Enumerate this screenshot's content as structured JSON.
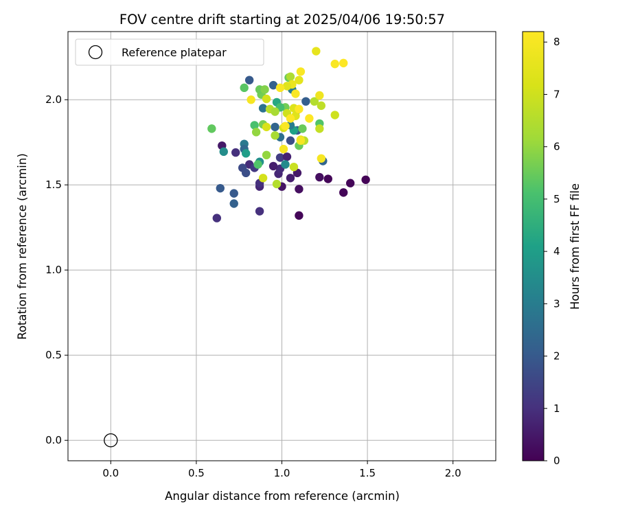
{
  "chart_data": {
    "type": "scatter",
    "title": "FOV centre drift starting at 2025/04/06 19:50:57",
    "xlabel": "Angular distance from reference (arcmin)",
    "ylabel": "Rotation from reference (arcmin)",
    "xlim": [
      -0.25,
      2.25
    ],
    "ylim": [
      -0.12,
      2.4
    ],
    "xticks": [
      "0.0",
      "0.5",
      "1.0",
      "1.5",
      "2.0"
    ],
    "xtick_values": [
      0,
      0.5,
      1.0,
      1.5,
      2.0
    ],
    "yticks": [
      "0.0",
      "0.5",
      "1.0",
      "1.5",
      "2.0"
    ],
    "ytick_values": [
      0,
      0.5,
      1.0,
      1.5,
      2.0
    ],
    "grid": true,
    "legend": {
      "placement": "top-left",
      "entries": [
        "Reference platepar"
      ]
    },
    "reference_point": {
      "x": 0.0,
      "y": 0.0
    },
    "colorbar": {
      "label": "Hours from first FF file",
      "colormap": "viridis",
      "range": [
        0,
        8.2
      ],
      "ticks": [
        "0",
        "1",
        "2",
        "3",
        "4",
        "5",
        "6",
        "7",
        "8"
      ],
      "tick_values": [
        0,
        1,
        2,
        3,
        4,
        5,
        6,
        7,
        8
      ]
    },
    "points": [
      {
        "x": 1.1,
        "y": 1.32,
        "h": 0.1
      },
      {
        "x": 1.36,
        "y": 1.455,
        "h": 0.1
      },
      {
        "x": 1.4,
        "y": 1.51,
        "h": 0.1
      },
      {
        "x": 1.49,
        "y": 1.53,
        "h": 0.05
      },
      {
        "x": 1.27,
        "y": 1.535,
        "h": 0.1
      },
      {
        "x": 1.22,
        "y": 1.545,
        "h": 0.3
      },
      {
        "x": 1.1,
        "y": 1.475,
        "h": 0.3
      },
      {
        "x": 1.0,
        "y": 1.49,
        "h": 0.4
      },
      {
        "x": 1.05,
        "y": 1.54,
        "h": 0.6
      },
      {
        "x": 1.09,
        "y": 1.57,
        "h": 0.5
      },
      {
        "x": 0.98,
        "y": 1.565,
        "h": 0.8
      },
      {
        "x": 0.99,
        "y": 1.595,
        "h": 0.9
      },
      {
        "x": 0.95,
        "y": 1.61,
        "h": 0.6
      },
      {
        "x": 0.87,
        "y": 1.49,
        "h": 0.8
      },
      {
        "x": 0.87,
        "y": 1.51,
        "h": 1.0
      },
      {
        "x": 0.87,
        "y": 1.345,
        "h": 1.0
      },
      {
        "x": 0.62,
        "y": 1.305,
        "h": 1.0
      },
      {
        "x": 0.65,
        "y": 1.73,
        "h": 0.5
      },
      {
        "x": 0.73,
        "y": 1.69,
        "h": 1.0
      },
      {
        "x": 0.81,
        "y": 1.62,
        "h": 0.9
      },
      {
        "x": 0.84,
        "y": 1.6,
        "h": 1.2
      },
      {
        "x": 0.77,
        "y": 1.6,
        "h": 1.6
      },
      {
        "x": 0.79,
        "y": 1.57,
        "h": 1.7
      },
      {
        "x": 0.64,
        "y": 1.48,
        "h": 2.0
      },
      {
        "x": 0.72,
        "y": 1.45,
        "h": 2.0
      },
      {
        "x": 0.72,
        "y": 1.39,
        "h": 2.2
      },
      {
        "x": 1.24,
        "y": 1.64,
        "h": 2.3
      },
      {
        "x": 0.99,
        "y": 1.66,
        "h": 1.3
      },
      {
        "x": 1.03,
        "y": 1.665,
        "h": 0.7
      },
      {
        "x": 1.05,
        "y": 1.76,
        "h": 1.7
      },
      {
        "x": 1.09,
        "y": 1.82,
        "h": 2.0
      },
      {
        "x": 0.99,
        "y": 1.78,
        "h": 2.6
      },
      {
        "x": 0.96,
        "y": 1.84,
        "h": 2.3
      },
      {
        "x": 1.02,
        "y": 1.62,
        "h": 3.4
      },
      {
        "x": 0.78,
        "y": 1.74,
        "h": 2.9
      },
      {
        "x": 0.66,
        "y": 1.695,
        "h": 3.5
      },
      {
        "x": 0.78,
        "y": 1.71,
        "h": 2.4
      },
      {
        "x": 0.89,
        "y": 1.95,
        "h": 2.7
      },
      {
        "x": 0.81,
        "y": 2.115,
        "h": 2.0
      },
      {
        "x": 0.95,
        "y": 2.085,
        "h": 2.2
      },
      {
        "x": 1.14,
        "y": 1.99,
        "h": 2.1
      },
      {
        "x": 1.09,
        "y": 1.94,
        "h": 1.9
      },
      {
        "x": 0.87,
        "y": 1.635,
        "h": 3.6
      },
      {
        "x": 0.79,
        "y": 1.685,
        "h": 4.0
      },
      {
        "x": 1.07,
        "y": 1.82,
        "h": 4.1
      },
      {
        "x": 1.05,
        "y": 1.85,
        "h": 3.0
      },
      {
        "x": 0.97,
        "y": 1.985,
        "h": 4.3
      },
      {
        "x": 1.06,
        "y": 2.06,
        "h": 3.0
      },
      {
        "x": 0.59,
        "y": 1.83,
        "h": 5.4
      },
      {
        "x": 0.78,
        "y": 2.07,
        "h": 5.3
      },
      {
        "x": 0.84,
        "y": 1.85,
        "h": 5.1
      },
      {
        "x": 0.86,
        "y": 1.62,
        "h": 5.2
      },
      {
        "x": 0.88,
        "y": 2.03,
        "h": 5.6
      },
      {
        "x": 0.87,
        "y": 2.06,
        "h": 5.5
      },
      {
        "x": 0.9,
        "y": 2.06,
        "h": 5.8
      },
      {
        "x": 0.89,
        "y": 1.855,
        "h": 5.7
      },
      {
        "x": 1.1,
        "y": 1.73,
        "h": 5.5
      },
      {
        "x": 1.12,
        "y": 1.83,
        "h": 5.5
      },
      {
        "x": 1.22,
        "y": 1.86,
        "h": 5.2
      },
      {
        "x": 1.02,
        "y": 1.955,
        "h": 5.6
      },
      {
        "x": 1.04,
        "y": 2.13,
        "h": 5.5
      },
      {
        "x": 0.99,
        "y": 1.955,
        "h": 5.0
      },
      {
        "x": 0.91,
        "y": 1.675,
        "h": 6.0
      },
      {
        "x": 0.85,
        "y": 1.81,
        "h": 6.0
      },
      {
        "x": 0.96,
        "y": 1.79,
        "h": 6.3
      },
      {
        "x": 0.97,
        "y": 1.505,
        "h": 6.5
      },
      {
        "x": 1.05,
        "y": 2.135,
        "h": 6.4
      },
      {
        "x": 0.93,
        "y": 1.945,
        "h": 6.6
      },
      {
        "x": 0.96,
        "y": 1.93,
        "h": 6.3
      },
      {
        "x": 1.13,
        "y": 1.76,
        "h": 6.6
      },
      {
        "x": 1.19,
        "y": 1.99,
        "h": 6.5
      },
      {
        "x": 1.22,
        "y": 1.83,
        "h": 6.8
      },
      {
        "x": 1.23,
        "y": 1.965,
        "h": 6.7
      },
      {
        "x": 1.07,
        "y": 1.605,
        "h": 6.9
      },
      {
        "x": 0.89,
        "y": 1.54,
        "h": 7.1
      },
      {
        "x": 0.91,
        "y": 1.84,
        "h": 7.2
      },
      {
        "x": 0.91,
        "y": 2.005,
        "h": 7.1
      },
      {
        "x": 1.01,
        "y": 1.835,
        "h": 7.2
      },
      {
        "x": 1.03,
        "y": 1.92,
        "h": 7.0
      },
      {
        "x": 1.08,
        "y": 1.905,
        "h": 7.4
      },
      {
        "x": 1.31,
        "y": 1.91,
        "h": 7.0
      },
      {
        "x": 1.11,
        "y": 1.765,
        "h": 7.5
      },
      {
        "x": 1.07,
        "y": 1.95,
        "h": 7.3
      },
      {
        "x": 1.1,
        "y": 2.115,
        "h": 7.5
      },
      {
        "x": 1.06,
        "y": 2.09,
        "h": 7.7
      },
      {
        "x": 1.2,
        "y": 2.285,
        "h": 7.6
      },
      {
        "x": 1.22,
        "y": 2.025,
        "h": 7.8
      },
      {
        "x": 1.03,
        "y": 2.08,
        "h": 7.4
      },
      {
        "x": 0.82,
        "y": 2.0,
        "h": 8.0
      },
      {
        "x": 0.99,
        "y": 2.07,
        "h": 8.1
      },
      {
        "x": 1.01,
        "y": 1.71,
        "h": 8.0
      },
      {
        "x": 1.02,
        "y": 1.845,
        "h": 8.1
      },
      {
        "x": 1.05,
        "y": 1.89,
        "h": 8.2
      },
      {
        "x": 1.08,
        "y": 2.035,
        "h": 8.1
      },
      {
        "x": 1.1,
        "y": 1.945,
        "h": 8.2
      },
      {
        "x": 1.11,
        "y": 2.165,
        "h": 8.1
      },
      {
        "x": 1.16,
        "y": 1.89,
        "h": 8.2
      },
      {
        "x": 1.23,
        "y": 1.655,
        "h": 8.0
      },
      {
        "x": 1.31,
        "y": 2.21,
        "h": 8.1
      },
      {
        "x": 1.36,
        "y": 2.215,
        "h": 8.2
      },
      {
        "x": 1.11,
        "y": 1.76,
        "h": 8.0
      }
    ]
  }
}
